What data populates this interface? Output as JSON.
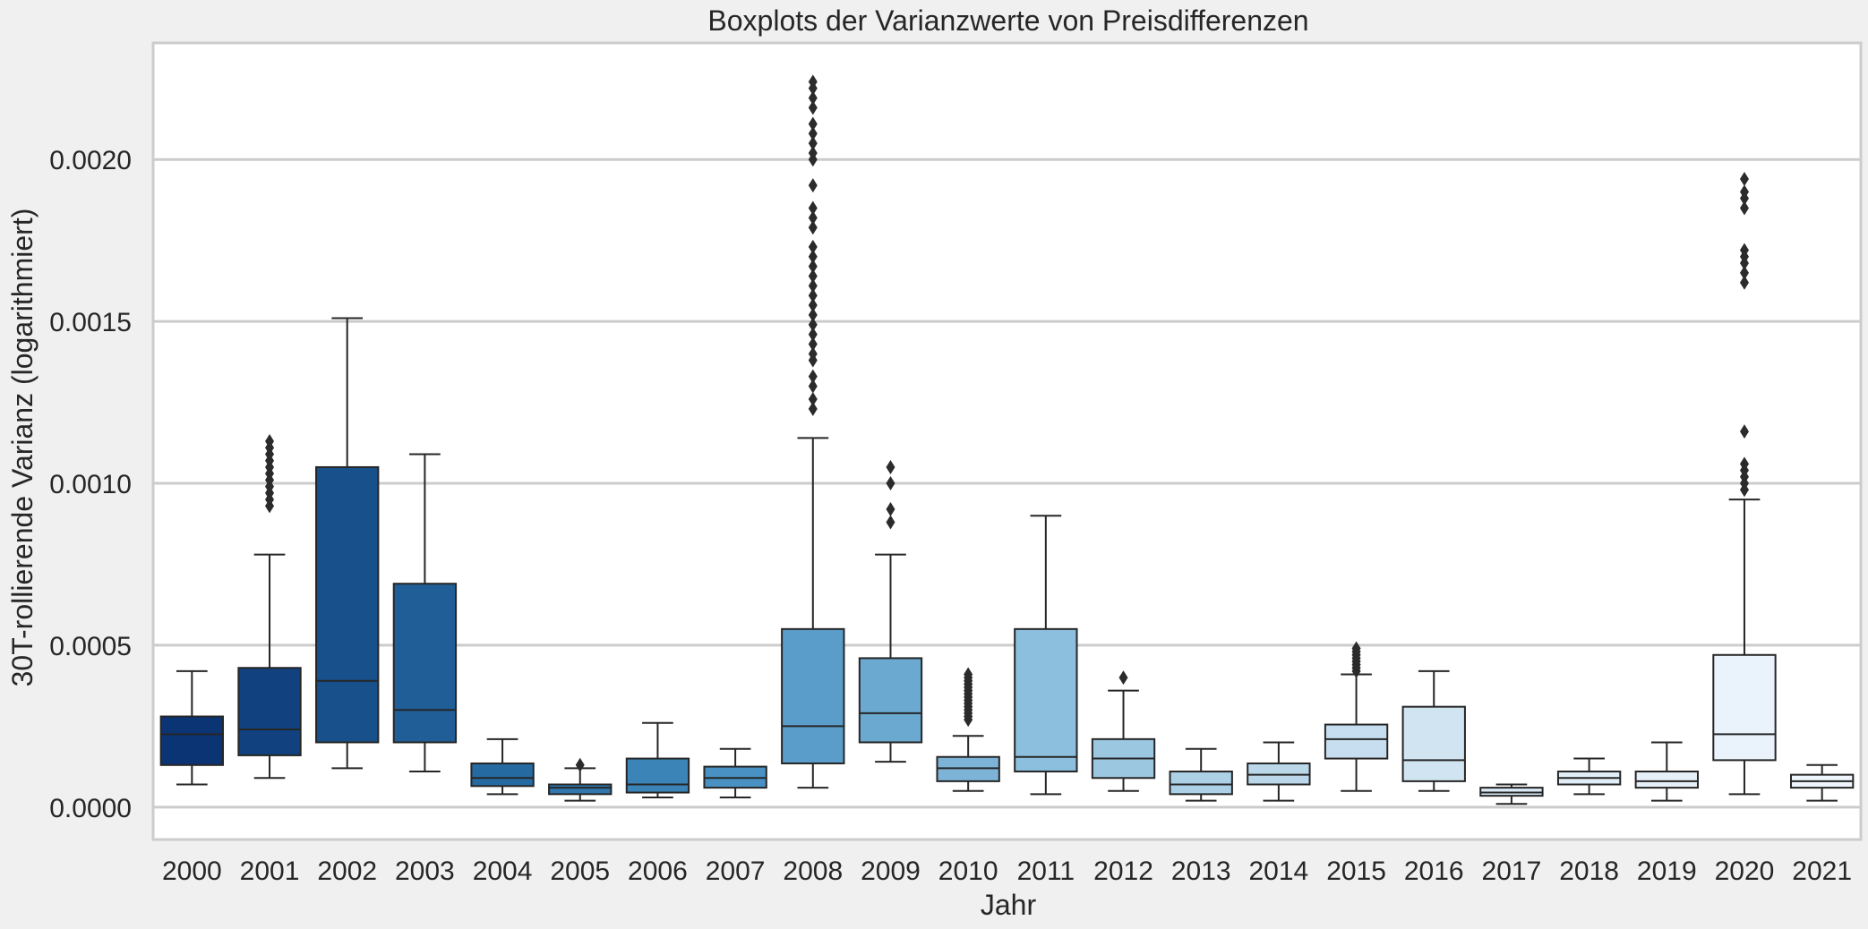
{
  "chart_data": {
    "type": "box",
    "title": "Boxplots der Varianzwerte von Preisdifferenzen",
    "xlabel": "Jahr",
    "ylabel": "30T-rollierende Varianz (logarithmiert)",
    "ylim": [
      -0.0001,
      0.00236
    ],
    "yticks": [
      0.0,
      0.0005,
      0.001,
      0.0015,
      0.002
    ],
    "ytick_labels": [
      "0.0000",
      "0.0005",
      "0.0010",
      "0.0015",
      "0.0020"
    ],
    "grid": true,
    "categories": [
      "2000",
      "2001",
      "2002",
      "2003",
      "2004",
      "2005",
      "2006",
      "2007",
      "2008",
      "2009",
      "2010",
      "2011",
      "2012",
      "2013",
      "2014",
      "2015",
      "2016",
      "2017",
      "2018",
      "2019",
      "2020",
      "2021"
    ],
    "colors": [
      "#0b3474",
      "#11427f",
      "#17508a",
      "#1f5e96",
      "#266aa2",
      "#2f77ad",
      "#3a84b8",
      "#4891c2",
      "#5a9dcb",
      "#6ba9d1",
      "#7cb3d7",
      "#8cbedd",
      "#9cc7e1",
      "#acd0e6",
      "#bbd8eb",
      "#c7def0",
      "#d1e4f2",
      "#dbeaf5",
      "#e1eef7",
      "#e6f0f8",
      "#eaf2fb",
      "#eef5fc"
    ],
    "boxes": [
      {
        "year": "2000",
        "whislo": 7e-05,
        "q1": 0.00013,
        "med": 0.000225,
        "q3": 0.00028,
        "whishi": 0.00042,
        "fliers": []
      },
      {
        "year": "2001",
        "whislo": 9e-05,
        "q1": 0.00016,
        "med": 0.00024,
        "q3": 0.00043,
        "whishi": 0.00078,
        "fliers": [
          0.00093,
          0.00095,
          0.00097,
          0.00099,
          0.00101,
          0.00103,
          0.00105,
          0.00107,
          0.00109,
          0.00111,
          0.00113
        ]
      },
      {
        "year": "2002",
        "whislo": 0.00012,
        "q1": 0.0002,
        "med": 0.00039,
        "q3": 0.00105,
        "whishi": 0.00151,
        "fliers": []
      },
      {
        "year": "2003",
        "whislo": 0.00011,
        "q1": 0.0002,
        "med": 0.0003,
        "q3": 0.00069,
        "whishi": 0.00109,
        "fliers": []
      },
      {
        "year": "2004",
        "whislo": 4e-05,
        "q1": 6.5e-05,
        "med": 9e-05,
        "q3": 0.000135,
        "whishi": 0.00021,
        "fliers": []
      },
      {
        "year": "2005",
        "whislo": 2e-05,
        "q1": 4e-05,
        "med": 6e-05,
        "q3": 7e-05,
        "whishi": 0.00012,
        "fliers": [
          0.00013
        ]
      },
      {
        "year": "2006",
        "whislo": 3e-05,
        "q1": 4.5e-05,
        "med": 7e-05,
        "q3": 0.00015,
        "whishi": 0.00026,
        "fliers": []
      },
      {
        "year": "2007",
        "whislo": 3e-05,
        "q1": 6e-05,
        "med": 9e-05,
        "q3": 0.000125,
        "whishi": 0.00018,
        "fliers": []
      },
      {
        "year": "2008",
        "whislo": 6e-05,
        "q1": 0.000135,
        "med": 0.00025,
        "q3": 0.00055,
        "whishi": 0.00114,
        "fliers": [
          0.00123,
          0.00126,
          0.0013,
          0.00133,
          0.00138,
          0.0014,
          0.00143,
          0.00146,
          0.00149,
          0.00152,
          0.00155,
          0.00158,
          0.00161,
          0.00164,
          0.00167,
          0.0017,
          0.00173,
          0.00179,
          0.00182,
          0.00185,
          0.00192,
          0.002,
          0.00202,
          0.00205,
          0.00208,
          0.00211,
          0.00216,
          0.00219,
          0.00222,
          0.00224
        ]
      },
      {
        "year": "2009",
        "whislo": 0.00014,
        "q1": 0.0002,
        "med": 0.00029,
        "q3": 0.00046,
        "whishi": 0.00078,
        "fliers": [
          0.00088,
          0.00092,
          0.001,
          0.00105
        ]
      },
      {
        "year": "2010",
        "whislo": 5e-05,
        "q1": 8e-05,
        "med": 0.00012,
        "q3": 0.000155,
        "whishi": 0.00022,
        "fliers": [
          0.00027,
          0.00028,
          0.00029,
          0.0003,
          0.00031,
          0.00032,
          0.00033,
          0.00034,
          0.00035,
          0.00036,
          0.00037,
          0.00038,
          0.00039,
          0.0004,
          0.00041
        ]
      },
      {
        "year": "2011",
        "whislo": 4e-05,
        "q1": 0.00011,
        "med": 0.000155,
        "q3": 0.00055,
        "whishi": 0.0009,
        "fliers": []
      },
      {
        "year": "2012",
        "whislo": 5e-05,
        "q1": 9e-05,
        "med": 0.00015,
        "q3": 0.00021,
        "whishi": 0.00036,
        "fliers": [
          0.0004
        ]
      },
      {
        "year": "2013",
        "whislo": 2e-05,
        "q1": 4e-05,
        "med": 7e-05,
        "q3": 0.00011,
        "whishi": 0.00018,
        "fliers": []
      },
      {
        "year": "2014",
        "whislo": 2e-05,
        "q1": 7e-05,
        "med": 0.0001,
        "q3": 0.000135,
        "whishi": 0.0002,
        "fliers": []
      },
      {
        "year": "2015",
        "whislo": 5e-05,
        "q1": 0.00015,
        "med": 0.00021,
        "q3": 0.000255,
        "whishi": 0.00041,
        "fliers": [
          0.00042,
          0.00043,
          0.00044,
          0.00045,
          0.00046,
          0.00047,
          0.00048,
          0.00049
        ]
      },
      {
        "year": "2016",
        "whislo": 5e-05,
        "q1": 8e-05,
        "med": 0.000145,
        "q3": 0.00031,
        "whishi": 0.00042,
        "fliers": []
      },
      {
        "year": "2017",
        "whislo": 1e-05,
        "q1": 3.5e-05,
        "med": 4.5e-05,
        "q3": 6e-05,
        "whishi": 7e-05,
        "fliers": []
      },
      {
        "year": "2018",
        "whislo": 4e-05,
        "q1": 7e-05,
        "med": 9e-05,
        "q3": 0.00011,
        "whishi": 0.00015,
        "fliers": []
      },
      {
        "year": "2019",
        "whislo": 2e-05,
        "q1": 6e-05,
        "med": 8e-05,
        "q3": 0.00011,
        "whishi": 0.0002,
        "fliers": []
      },
      {
        "year": "2020",
        "whislo": 4e-05,
        "q1": 0.000145,
        "med": 0.000225,
        "q3": 0.00047,
        "whishi": 0.00095,
        "fliers": [
          0.00098,
          0.001,
          0.00102,
          0.00104,
          0.00106,
          0.00116,
          0.00162,
          0.00165,
          0.00168,
          0.0017,
          0.00172,
          0.00185,
          0.00188,
          0.0019,
          0.00194
        ]
      },
      {
        "year": "2021",
        "whislo": 2e-05,
        "q1": 6e-05,
        "med": 8e-05,
        "q3": 0.0001,
        "whishi": 0.00013,
        "fliers": []
      }
    ]
  }
}
